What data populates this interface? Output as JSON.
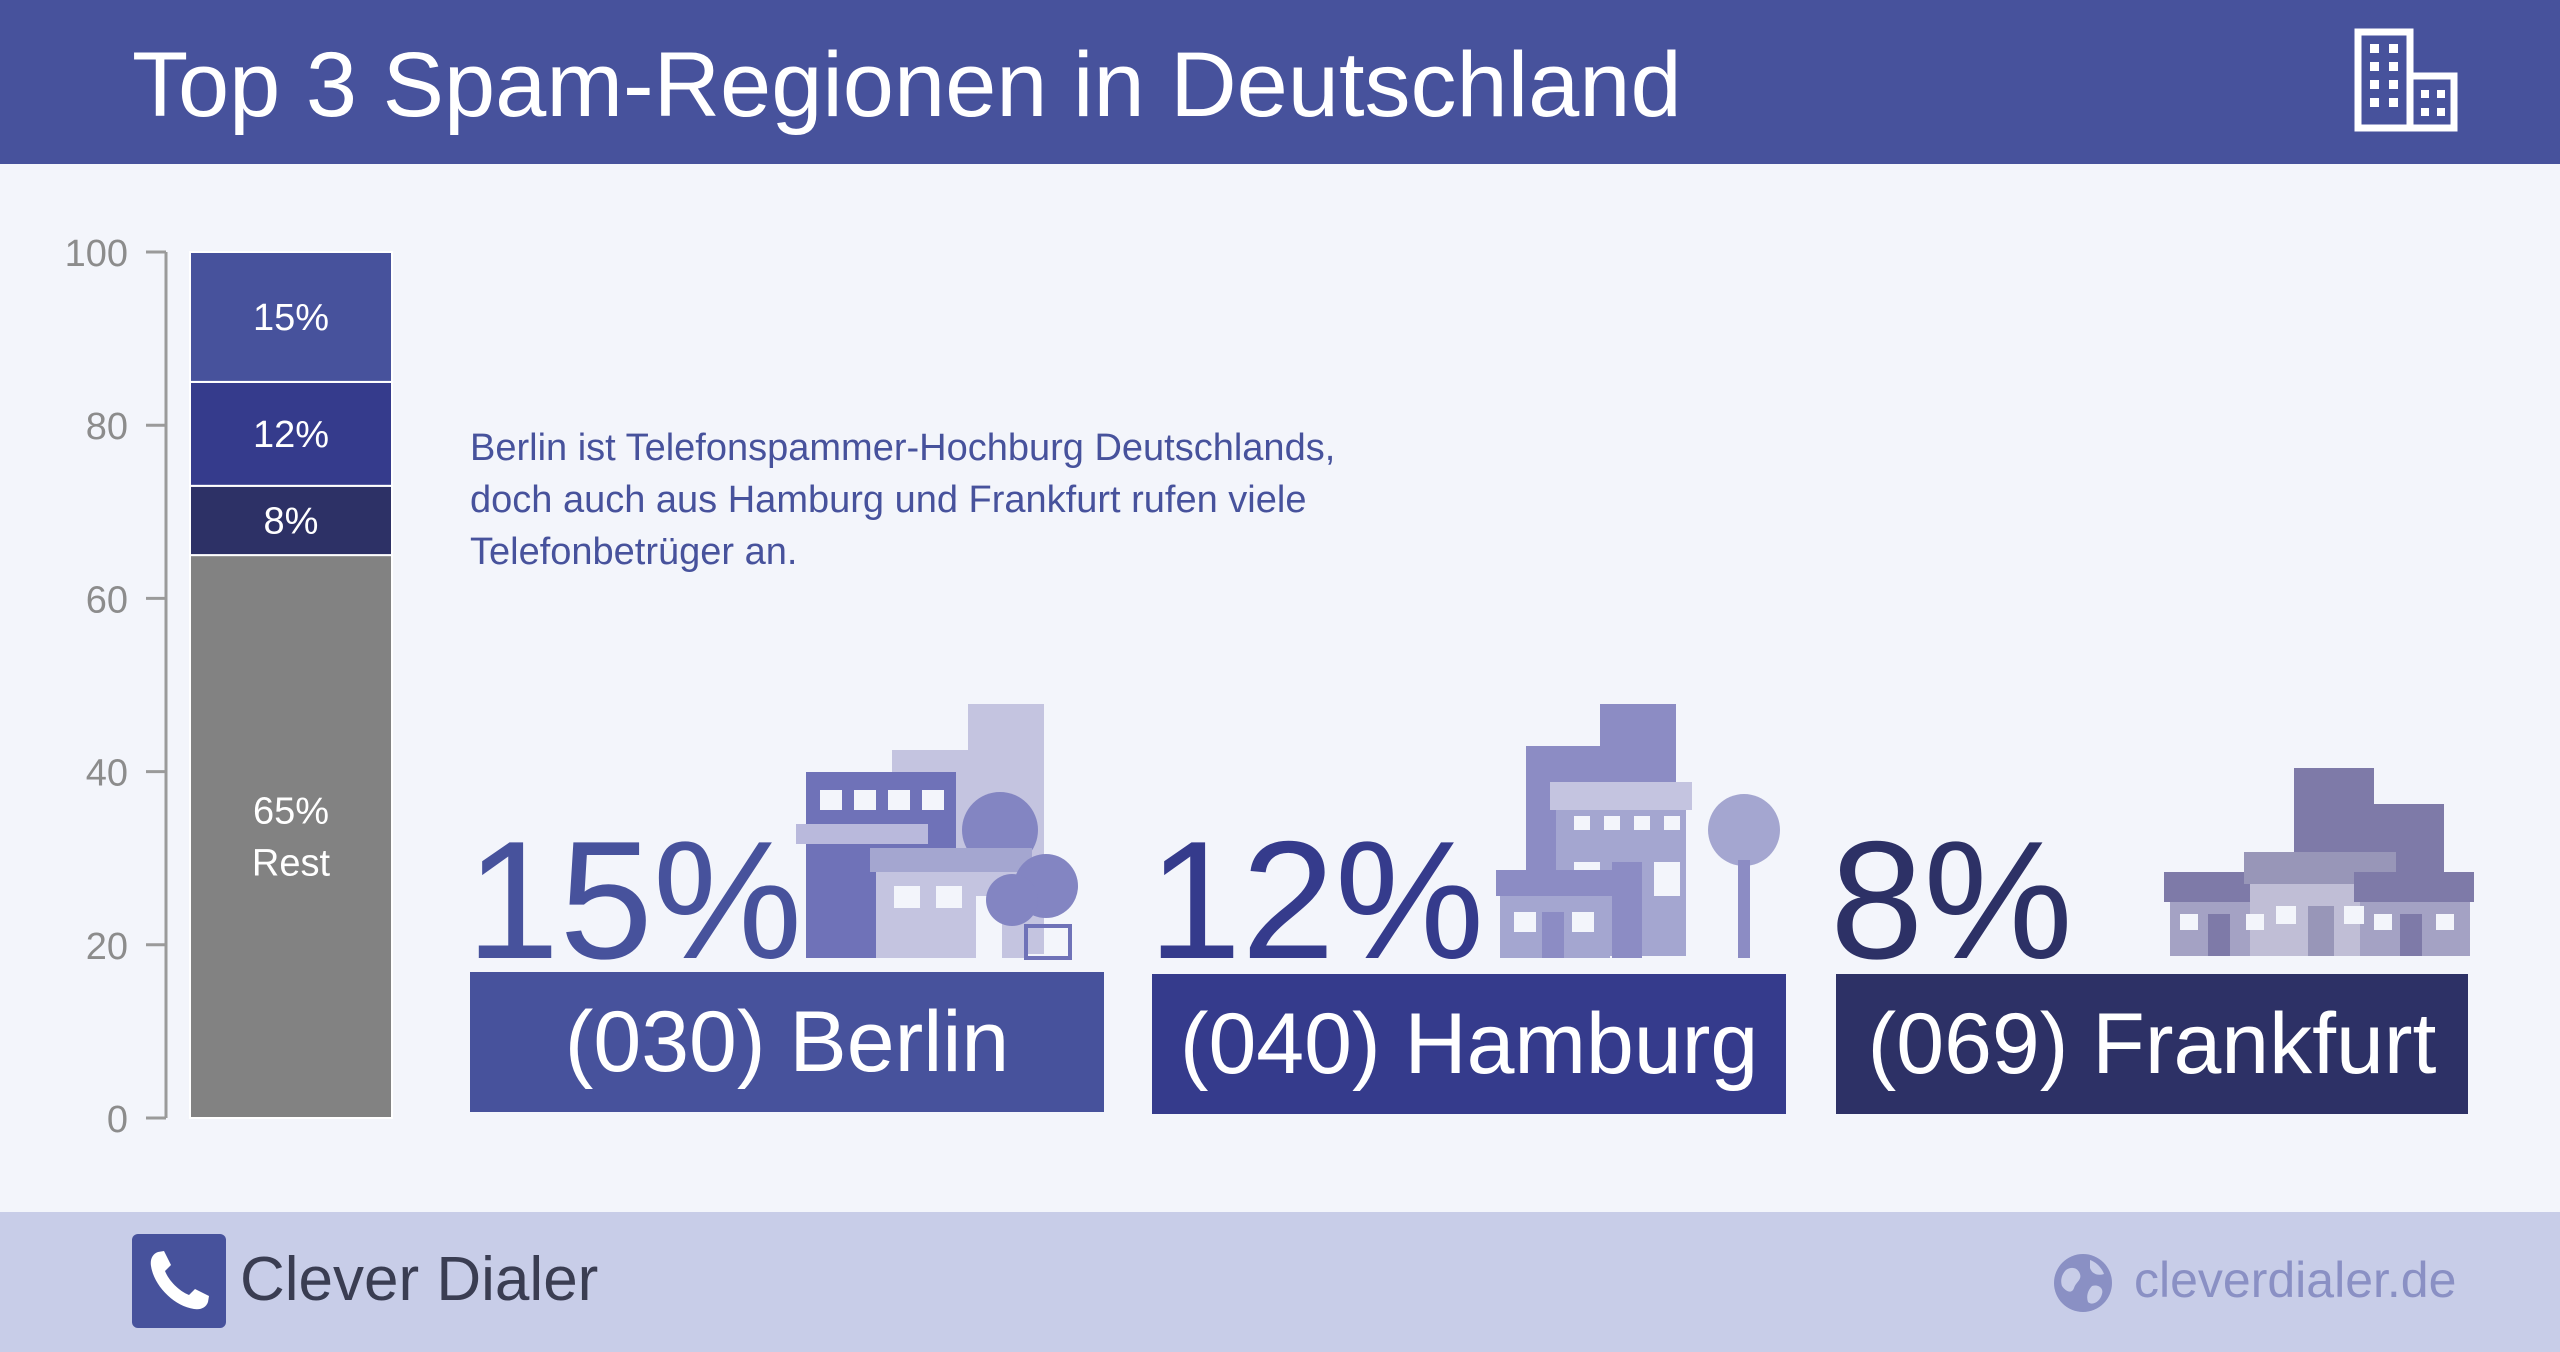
{
  "header": {
    "title": "Top 3 Spam-Regionen in Deutschland",
    "icon": "building-icon"
  },
  "description": "Berlin ist Telefonspammer-Hochburg Deutschlands, doch auch aus Hamburg und Frankfurt rufen viele Telefonbetrüger an.",
  "chart_data": {
    "type": "bar",
    "stacked": true,
    "title": "",
    "xlabel": "",
    "ylabel": "",
    "ylim": [
      0,
      100
    ],
    "yticks": [
      "0",
      "20",
      "40",
      "60",
      "80",
      "100"
    ],
    "segments": [
      {
        "value": 65,
        "label": "65%",
        "sublabel": "Rest",
        "color": "#828282"
      },
      {
        "value": 8,
        "label": "8%",
        "color": "#2d3166"
      },
      {
        "value": 12,
        "label": "12%",
        "color": "#353b8c"
      },
      {
        "value": 15,
        "label": "15%",
        "color": "#47529c"
      }
    ]
  },
  "cities": [
    {
      "percent": "15%",
      "label": "(030) Berlin",
      "color": "#47529c",
      "percent_color": "#47529c"
    },
    {
      "percent": "12%",
      "label": "(040) Hamburg",
      "color": "#353b8c",
      "percent_color": "#353b8c"
    },
    {
      "percent": "8%",
      "label": "(069) Frankfurt",
      "color": "#2d3166",
      "percent_color": "#2d3166"
    }
  ],
  "footer": {
    "brand": "Clever Dialer",
    "brand_icon": "phone-icon",
    "website": "cleverdialer.de",
    "website_icon": "globe-icon"
  }
}
